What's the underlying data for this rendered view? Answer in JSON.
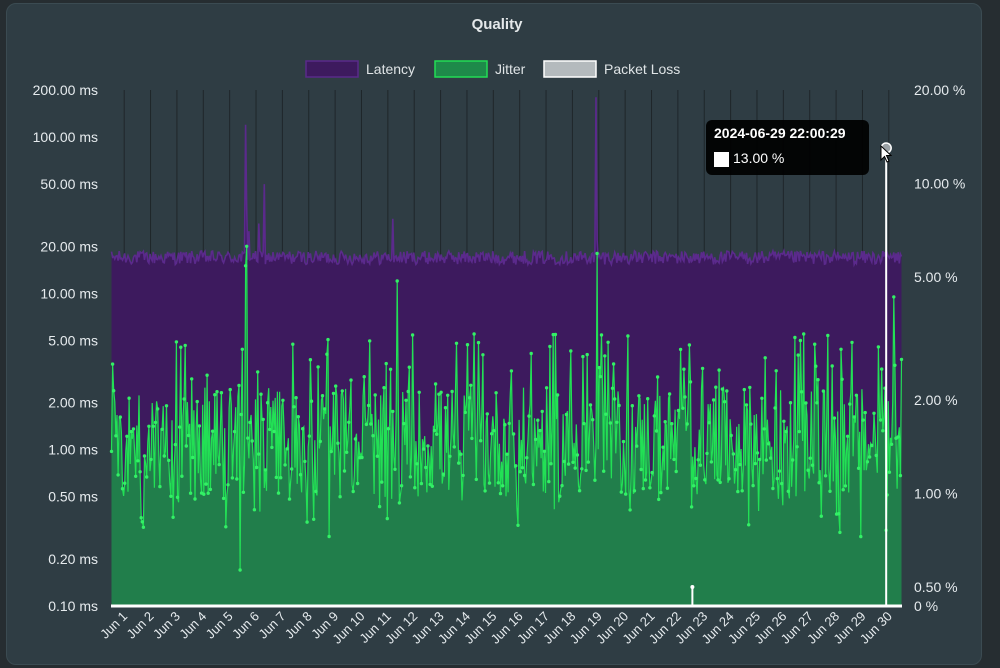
{
  "chart_data": {
    "type": "line",
    "title": "Quality",
    "legend": {
      "position": "top",
      "items": [
        {
          "name": "Latency",
          "color": "#3d1a5e",
          "border": "#5a2a8a"
        },
        {
          "name": "Jitter",
          "color": "#1e8a4a",
          "border": "#22dd55"
        },
        {
          "name": "Packet Loss",
          "color": "#b4babd",
          "border": "#ffffff"
        }
      ]
    },
    "y_left": {
      "scale": "log",
      "range": [
        0.1,
        200
      ],
      "tick_values": [
        0.1,
        0.2,
        0.5,
        1,
        2,
        5,
        10,
        20,
        50,
        100,
        200
      ],
      "tick_labels": [
        "0.10 ms",
        "0.20 ms",
        "0.50 ms",
        "1.00 ms",
        "2.00 ms",
        "5.00 ms",
        "10.00 ms",
        "20.00 ms",
        "50.00 ms",
        "100.00 ms",
        "200.00 ms"
      ]
    },
    "y_right": {
      "scale": "log",
      "range": [
        0.5,
        20
      ],
      "zero_label": "0 %",
      "tick_values": [
        0.5,
        1,
        2,
        5,
        10,
        20
      ],
      "tick_labels": [
        "0.50 %",
        "1.00 %",
        "2.00 %",
        "5.00 %",
        "10.00 %",
        "20.00 %"
      ]
    },
    "x": {
      "categories": [
        "Jun 1",
        "Jun 2",
        "Jun 3",
        "Jun 4",
        "Jun 5",
        "Jun 6",
        "Jun 7",
        "Jun 8",
        "Jun 9",
        "Jun 10",
        "Jun 11",
        "Jun 12",
        "Jun 13",
        "Jun 14",
        "Jun 15",
        "Jun 16",
        "Jun 17",
        "Jun 18",
        "Jun 19",
        "Jun 20",
        "Jun 21",
        "Jun 22",
        "Jun 23",
        "Jun 24",
        "Jun 25",
        "Jun 26",
        "Jun 27",
        "Jun 28",
        "Jun 29",
        "Jun 30"
      ]
    },
    "series": [
      {
        "name": "Latency",
        "unit": "ms",
        "baseline": 17,
        "spikes": [
          {
            "day": 5.6,
            "value": 120
          },
          {
            "day": 5.66,
            "value": 35
          },
          {
            "day": 5.75,
            "value": 25
          },
          {
            "day": 6.1,
            "value": 28
          },
          {
            "day": 6.3,
            "value": 50
          },
          {
            "day": 11.2,
            "value": 30
          },
          {
            "day": 18.9,
            "value": 180
          },
          {
            "day": 18.95,
            "value": 22
          }
        ]
      },
      {
        "name": "Jitter",
        "unit": "ms",
        "typical_range": [
          0.5,
          2.5
        ],
        "spikes": [
          {
            "day": 5.65,
            "value": 20
          },
          {
            "day": 5.6,
            "value": 15
          },
          {
            "day": 11.35,
            "value": 12
          },
          {
            "day": 18.95,
            "value": 18
          },
          {
            "day": 5.4,
            "value": 0.17
          },
          {
            "day": 30.2,
            "value": 9.5
          }
        ]
      },
      {
        "name": "Packet Loss",
        "unit": "%",
        "points": [
          {
            "day": 22.55,
            "value": 0.5
          },
          {
            "day": 29.9,
            "value": 13.0
          }
        ]
      }
    ]
  },
  "tooltip": {
    "title": "2024-06-29 22:00:29",
    "value": "13.00 %"
  }
}
